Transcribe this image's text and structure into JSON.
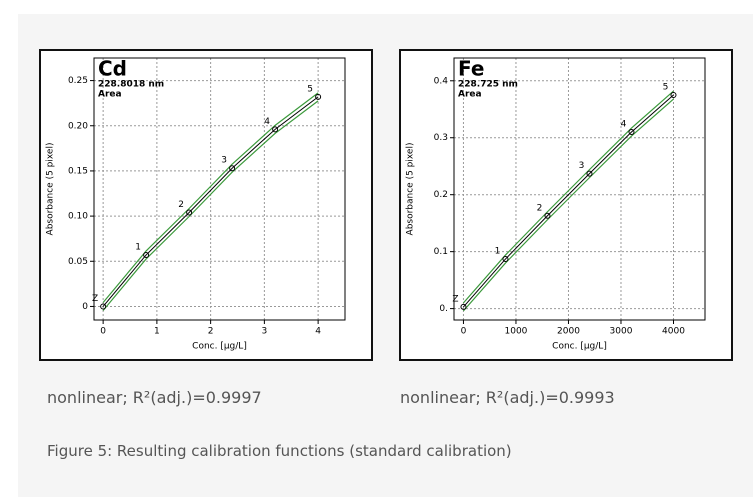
{
  "chart_data": [
    {
      "type": "line",
      "title": "Cd",
      "subtitle": "228.8018 nm",
      "annotation": "Area",
      "x_label": "Conc. [µg/L]",
      "y_label": "Absorbance (5 pixel)",
      "x": [
        0,
        0.8,
        1.6,
        2.4,
        3.2,
        4.0
      ],
      "point_labels": [
        "Z",
        "1",
        "2",
        "3",
        "4",
        "5"
      ],
      "values": [
        0,
        0.057,
        0.104,
        0.153,
        0.196,
        0.232
      ],
      "xlim": [
        -0.17,
        4.5
      ],
      "ylim": [
        -0.015,
        0.275
      ],
      "xticks": [
        0,
        1,
        2,
        3,
        4
      ],
      "yticks": [
        0,
        0.05,
        {
          "value": 0.1,
          "label": "0.10"
        },
        0.15,
        {
          "value": 0.2,
          "label": "0.20"
        },
        0.25
      ],
      "grid": true,
      "color": "#000000",
      "band_color": "#3c9a3c",
      "caption": "nonlinear; R²(adj.)=0.9997"
    },
    {
      "type": "line",
      "title": "Fe",
      "subtitle": "228.725 nm",
      "annotation": "Area",
      "x_label": "Conc. [µg/L]",
      "y_label": "Absorbance (5 pixel)",
      "x": [
        0,
        800,
        1600,
        2400,
        3200,
        4000
      ],
      "point_labels": [
        "Z",
        "1",
        "2",
        "3",
        "4",
        "5"
      ],
      "values": [
        0.003,
        0.087,
        0.163,
        0.237,
        0.31,
        0.375
      ],
      "xlim": [
        -180,
        4600
      ],
      "ylim": [
        -0.02,
        0.44
      ],
      "xticks": [
        0,
        1000,
        2000,
        3000,
        4000
      ],
      "yticks": [
        {
          "value": 0,
          "label": "0."
        },
        0.1,
        0.2,
        0.3,
        0.4
      ],
      "grid": true,
      "color": "#000000",
      "band_color": "#3c9a3c",
      "caption": "nonlinear; R²(adj.)=0.9993"
    }
  ],
  "figure_caption": "Figure 5: Resulting calibration functions (standard calibration)"
}
